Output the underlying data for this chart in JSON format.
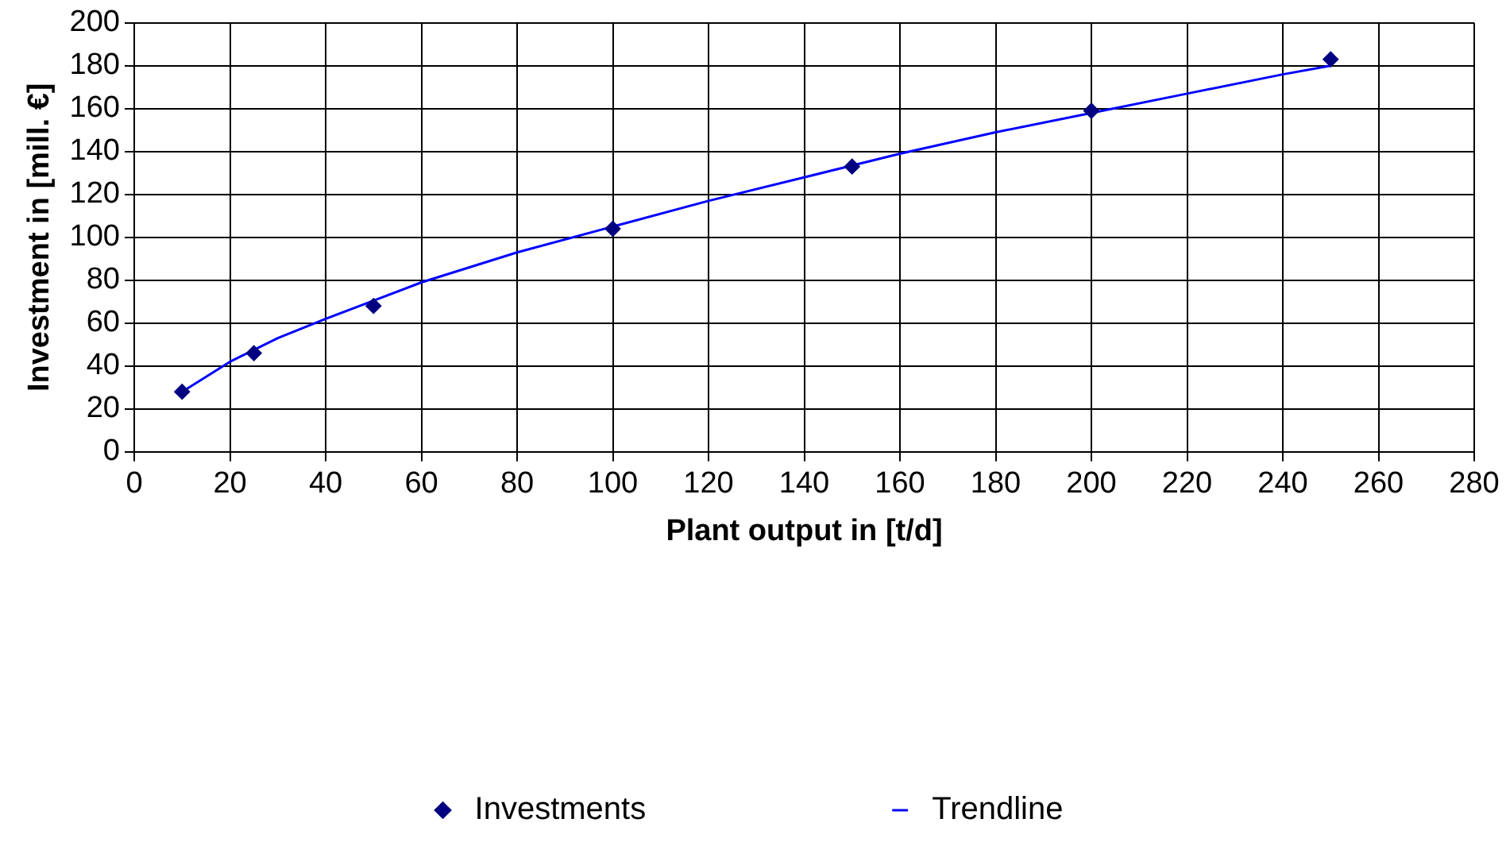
{
  "chart_data": {
    "type": "scatter",
    "xlabel": "Plant output in [t/d]",
    "ylabel": "Investment in [mill. €]",
    "xlim": [
      0,
      280
    ],
    "xticks": [
      0,
      20,
      40,
      60,
      80,
      100,
      120,
      140,
      160,
      180,
      200,
      220,
      240,
      260,
      280
    ],
    "ylim": [
      0,
      200
    ],
    "yticks": [
      0,
      20,
      40,
      60,
      80,
      100,
      120,
      140,
      160,
      180,
      200
    ],
    "grid": true,
    "legend": "bottom",
    "series": [
      {
        "name": "Investments",
        "type": "scatter",
        "marker": "diamond",
        "color": "#000080",
        "x": [
          10,
          25,
          50,
          100,
          150,
          200,
          250
        ],
        "values": [
          28,
          46,
          68,
          104,
          133,
          159,
          183
        ]
      },
      {
        "name": "Trendline",
        "type": "line",
        "marker": "none",
        "color": "#0000ff",
        "x": [
          10,
          20,
          30,
          40,
          60,
          80,
          100,
          120,
          140,
          160,
          180,
          200,
          220,
          240,
          250
        ],
        "values": [
          28,
          42,
          53,
          62,
          79,
          93,
          105,
          117,
          128,
          139,
          149,
          158,
          167,
          176,
          180
        ]
      }
    ]
  }
}
